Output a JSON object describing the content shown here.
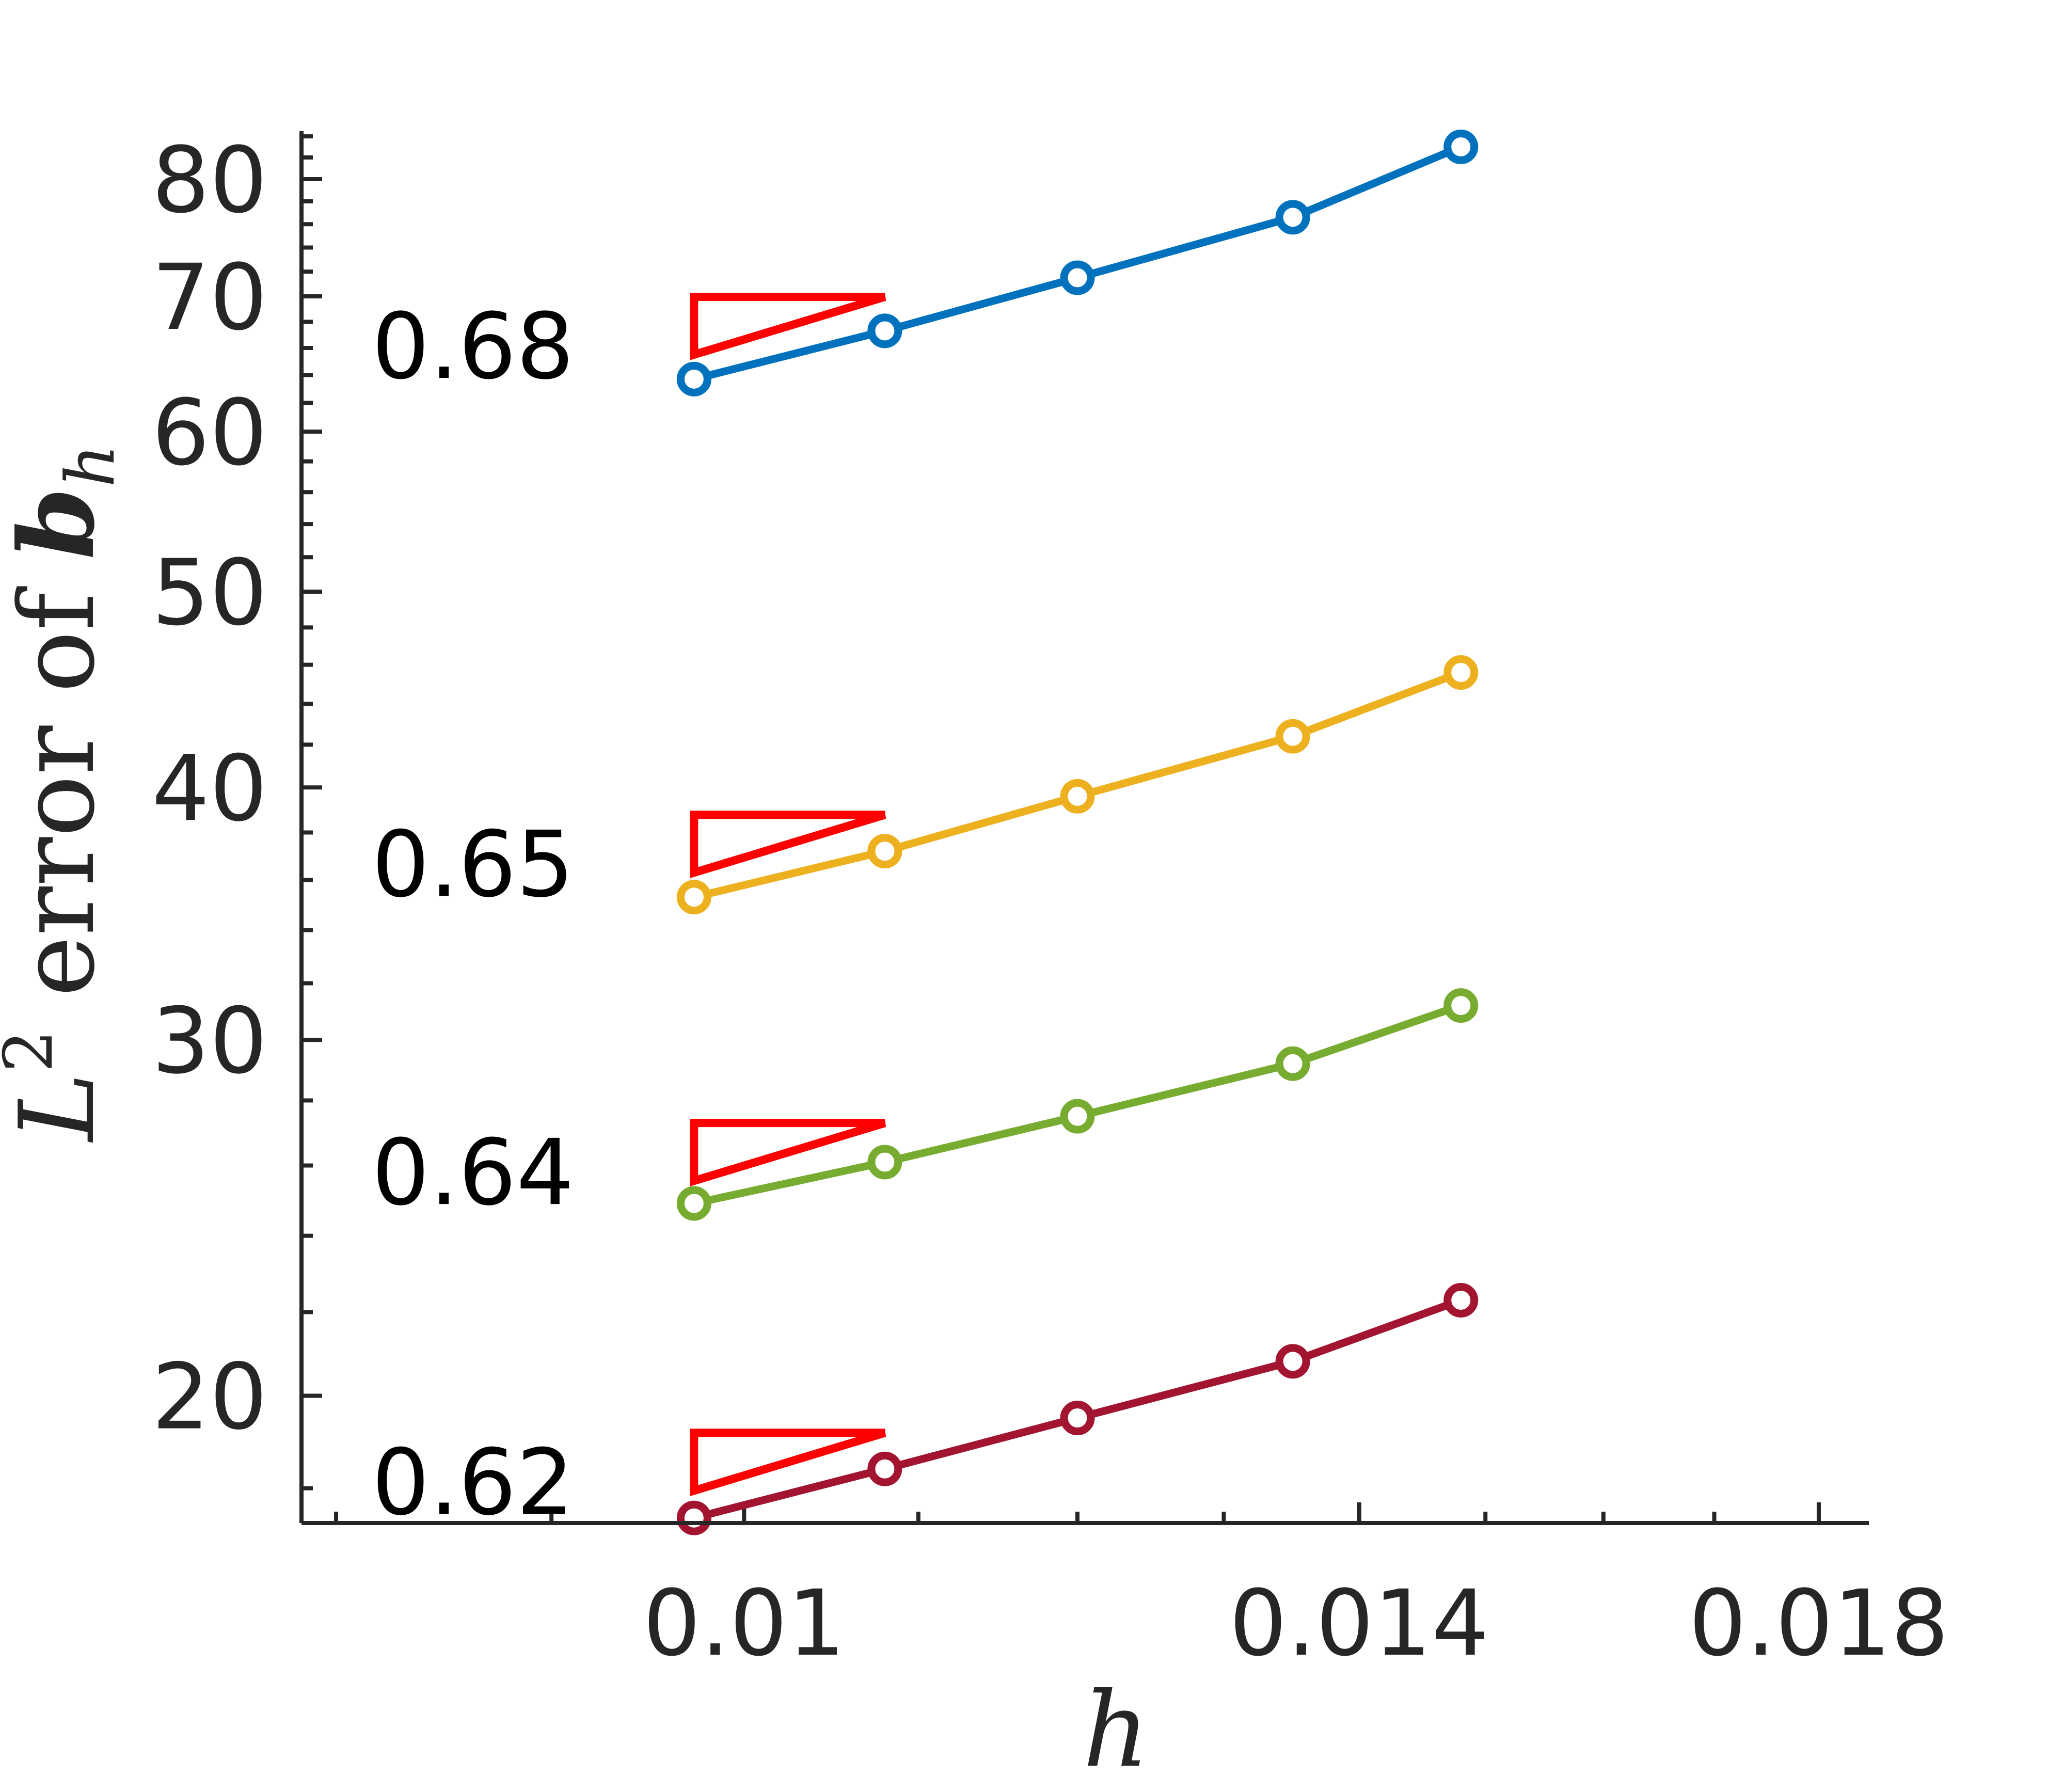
{
  "chart_data": {
    "type": "line",
    "xlabel": "h",
    "ylabel": "L² error of b_h",
    "ylabel_parts": {
      "base": "L",
      "sup": "2",
      "middle": " error of ",
      "vec": "b",
      "sub": "h"
    },
    "xscale": "log",
    "yscale": "log",
    "xlim": [
      0.00785,
      0.0185
    ],
    "ylim": [
      17.3,
      84.5
    ],
    "x_ticks": [
      0.01,
      0.014,
      0.018
    ],
    "x_tick_labels": [
      "0.01",
      "0.014",
      "0.018"
    ],
    "y_ticks": [
      20,
      30,
      40,
      50,
      60,
      70,
      80
    ],
    "y_tick_labels": [
      "20",
      "30",
      "40",
      "50",
      "60",
      "70",
      "80"
    ],
    "x": [
      0.00973,
      0.0108,
      0.012,
      0.0135,
      0.0148
    ],
    "series": [
      {
        "color": "#0072BD",
        "values": [
          63.7,
          67.3,
          71.5,
          76.6,
          83.0
        ]
      },
      {
        "color": "#EDB120",
        "values": [
          35.3,
          37.2,
          39.6,
          42.4,
          45.6
        ]
      },
      {
        "color": "#77AC30",
        "values": [
          24.9,
          26.1,
          27.5,
          29.2,
          31.2
        ]
      },
      {
        "color": "#A2142F",
        "values": [
          17.4,
          18.4,
          19.5,
          20.8,
          22.3
        ]
      }
    ],
    "slope_annotations": [
      {
        "label": "0.68",
        "color": "#FF0000"
      },
      {
        "label": "0.65",
        "color": "#FF0000"
      },
      {
        "label": "0.64",
        "color": "#FF0000"
      },
      {
        "label": "0.62",
        "color": "#FF0000"
      }
    ],
    "grid": false,
    "legend": "none"
  }
}
